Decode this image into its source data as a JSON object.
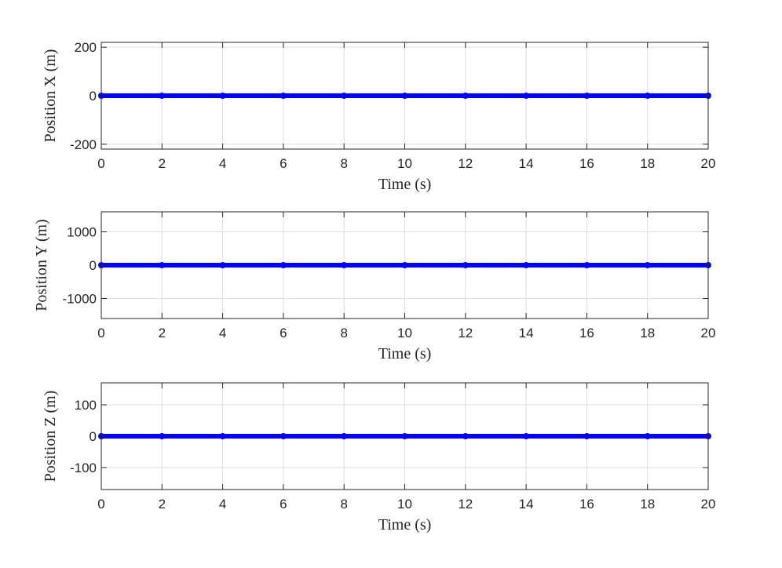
{
  "colors": {
    "series": "#0000ff",
    "axes": "#262626",
    "grid": "#dfdfdf",
    "background": "#ffffff"
  },
  "chart_data": [
    {
      "type": "line",
      "xlabel": "Time (s)",
      "ylabel": "Position X (m)",
      "xlim": [
        0,
        20
      ],
      "ylim": [
        -220,
        220
      ],
      "xticks": [
        0,
        2,
        4,
        6,
        8,
        10,
        12,
        14,
        16,
        18,
        20
      ],
      "yticks": [
        -200,
        0,
        200
      ],
      "grid": true,
      "series": [
        {
          "color": "#0000ff",
          "marker": "circle",
          "x": [
            0,
            2,
            4,
            6,
            8,
            10,
            12,
            14,
            16,
            18,
            20
          ],
          "y": [
            0,
            0,
            0,
            0,
            0,
            0,
            0,
            0,
            0,
            0,
            0
          ]
        }
      ]
    },
    {
      "type": "line",
      "xlabel": "Time (s)",
      "ylabel": "Position Y (m)",
      "xlim": [
        0,
        20
      ],
      "ylim": [
        -1600,
        1600
      ],
      "xticks": [
        0,
        2,
        4,
        6,
        8,
        10,
        12,
        14,
        16,
        18,
        20
      ],
      "yticks": [
        -1000,
        0,
        1000
      ],
      "grid": true,
      "series": [
        {
          "color": "#0000ff",
          "marker": "circle",
          "x": [
            0,
            2,
            4,
            6,
            8,
            10,
            12,
            14,
            16,
            18,
            20
          ],
          "y": [
            0,
            0,
            0,
            0,
            0,
            0,
            0,
            0,
            0,
            0,
            0
          ]
        }
      ]
    },
    {
      "type": "line",
      "xlabel": "Time (s)",
      "ylabel": "Position Z (m)",
      "xlim": [
        0,
        20
      ],
      "ylim": [
        -170,
        170
      ],
      "xticks": [
        0,
        2,
        4,
        6,
        8,
        10,
        12,
        14,
        16,
        18,
        20
      ],
      "yticks": [
        -100,
        0,
        100
      ],
      "grid": true,
      "series": [
        {
          "color": "#0000ff",
          "marker": "circle",
          "x": [
            0,
            2,
            4,
            6,
            8,
            10,
            12,
            14,
            16,
            18,
            20
          ],
          "y": [
            0,
            0,
            0,
            0,
            0,
            0,
            0,
            0,
            0,
            0,
            0
          ]
        }
      ]
    }
  ]
}
